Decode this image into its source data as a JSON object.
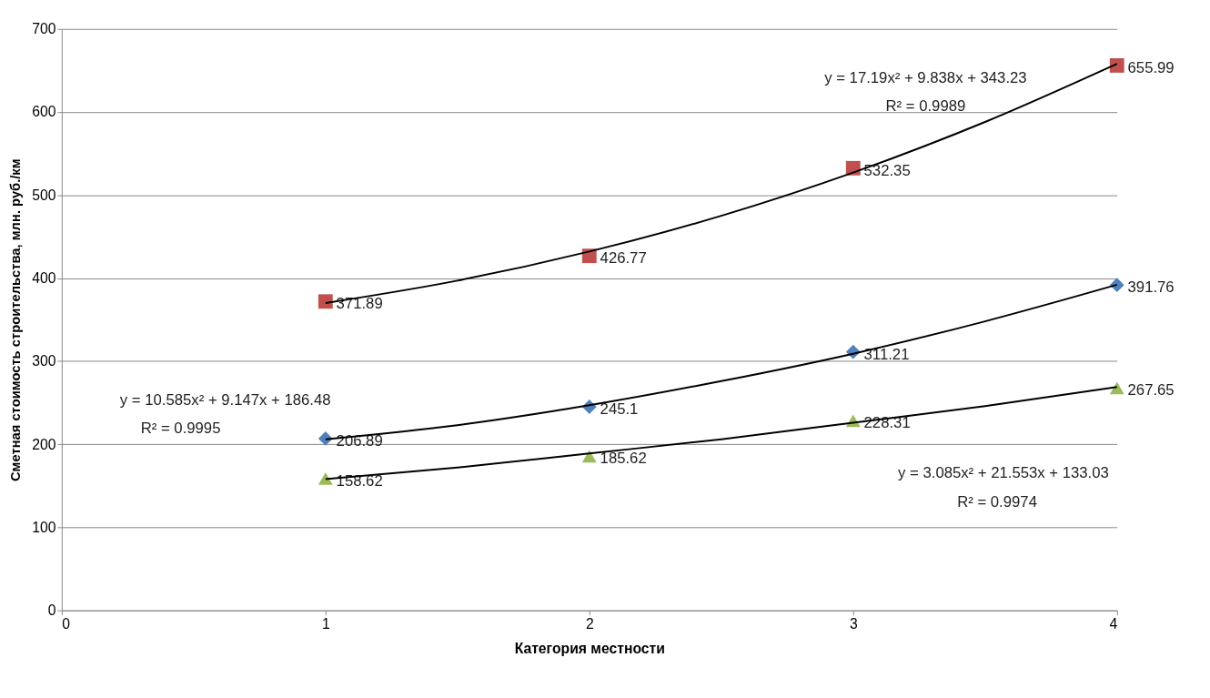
{
  "chart_data": {
    "type": "scatter",
    "xlabel": "Категория местности",
    "ylabel": "Сметная стоимость строительства, млн. руб./км",
    "x": [
      1,
      2,
      3,
      4
    ],
    "xlim": [
      0,
      4
    ],
    "xticks": [
      0,
      1,
      2,
      3,
      4
    ],
    "ylim": [
      0,
      700
    ],
    "yticks": [
      0,
      100,
      200,
      300,
      400,
      500,
      600,
      700
    ],
    "grid": "y",
    "series": [
      {
        "color": "#c0504d",
        "marker": "square",
        "values": [
          371.89,
          426.77,
          532.35,
          655.99
        ],
        "value_labels": [
          "371.89",
          "426.77",
          "532.35",
          "655.99"
        ]
      },
      {
        "color": "#4f81bd",
        "marker": "diamond",
        "values": [
          206.89,
          245.1,
          311.21,
          391.76
        ],
        "value_labels": [
          "206.89",
          "245.1",
          "311.21",
          "391.76"
        ]
      },
      {
        "color": "#9bbb59",
        "marker": "triangle",
        "values": [
          158.62,
          185.62,
          228.31,
          267.65
        ],
        "value_labels": [
          "158.62",
          "185.62",
          "228.31",
          "267.65"
        ]
      },
      {
        "type": "line",
        "color": "#000000",
        "x": [
          1,
          1.5,
          2,
          2.5,
          3,
          3.5,
          4
        ],
        "values": [
          370,
          397,
          432,
          475,
          527,
          588,
          658
        ]
      },
      {
        "type": "line",
        "color": "#000000",
        "x": [
          1,
          1.5,
          2,
          2.5,
          3,
          3.5,
          4
        ],
        "values": [
          206,
          223,
          247,
          276,
          309,
          348,
          392
        ]
      },
      {
        "type": "line",
        "color": "#000000",
        "x": [
          1,
          1.5,
          2,
          2.5,
          3,
          3.5,
          4
        ],
        "values": [
          158,
          172,
          189,
          206,
          226,
          246,
          269
        ]
      }
    ],
    "annotations": [
      "y = 17.19x² + 9.838x + 343.23",
      "R² = 0.9989",
      "y = 10.585x² + 9.147x + 186.48",
      "R² = 0.9995",
      "y = 3.085x² + 21.553x + 133.03",
      "R² = 0.9974"
    ]
  }
}
